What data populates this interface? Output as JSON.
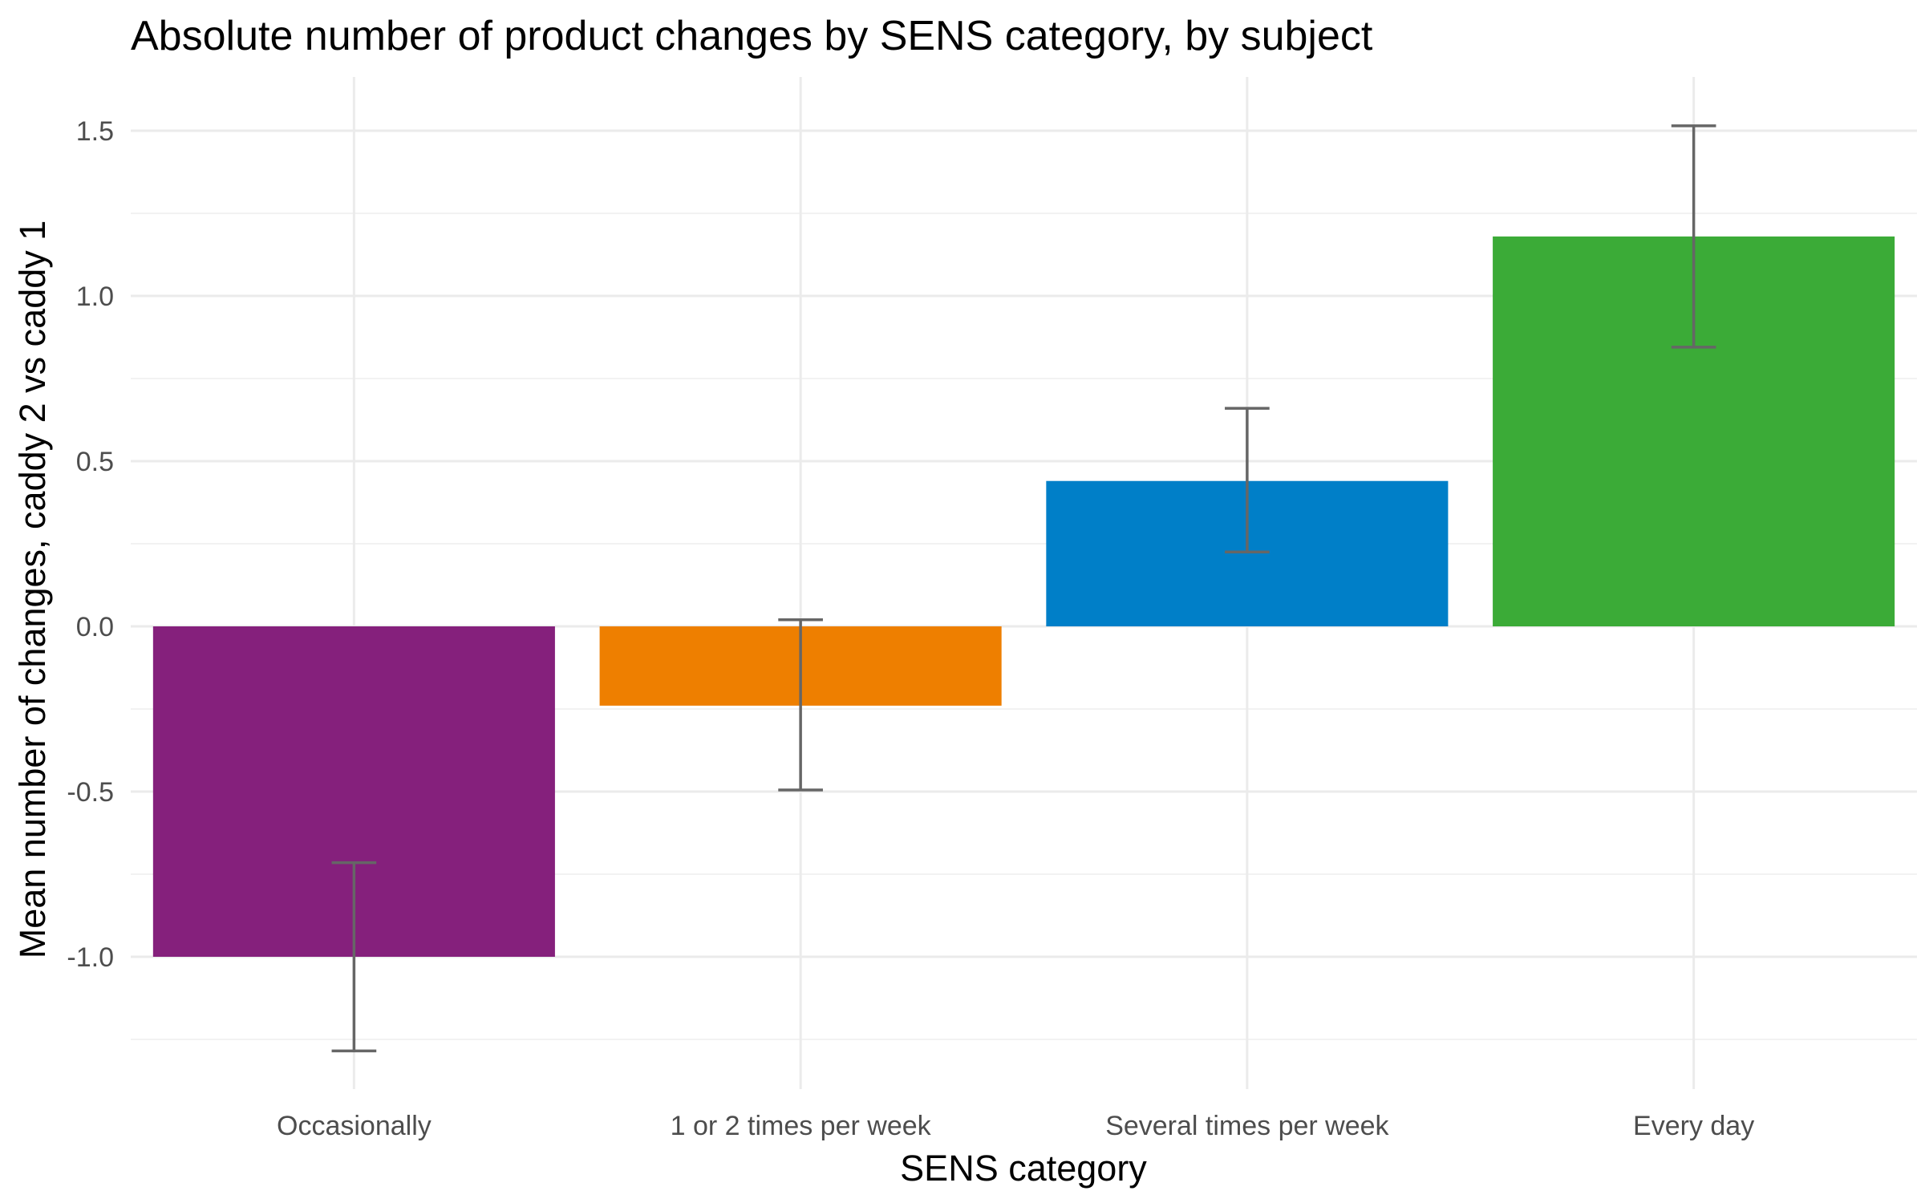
{
  "chart_data": {
    "type": "bar",
    "title": "Absolute number of product changes by SENS category, by subject",
    "xlabel": "SENS category",
    "ylabel": "Mean number of changes, caddy 2 vs caddy 1",
    "categories": [
      "Occasionally",
      "1 or 2 times per week",
      "Several times per week",
      "Every day"
    ],
    "values": [
      -1.0,
      -0.24,
      0.44,
      1.18
    ],
    "error_low": [
      -1.285,
      -0.495,
      0.225,
      0.845
    ],
    "error_high": [
      -0.715,
      0.02,
      0.66,
      1.515
    ],
    "colors": [
      "#85207C",
      "#EE7F00",
      "#007FC8",
      "#3BAB37"
    ],
    "ylim": [
      -1.4,
      1.65
    ],
    "yticks": [
      -1.0,
      -0.5,
      0.0,
      0.5,
      1.0,
      1.5
    ],
    "ytick_labels": [
      "-1.0",
      "-0.5",
      "0.0",
      "0.5",
      "1.0",
      "1.5"
    ],
    "grid": true,
    "legend": "none"
  }
}
